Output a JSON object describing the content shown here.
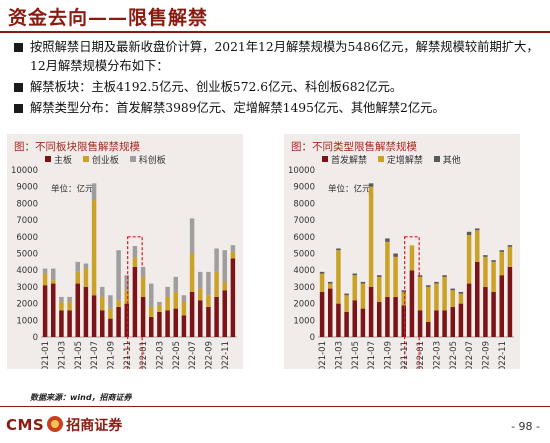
{
  "slide": {
    "title": "资金去向——限售解禁",
    "bullets": [
      "按照解禁日期及最新收盘价计算，2021年12月解禁规模为5486亿元，解禁规模较前期扩大，12月解禁规模分布如下：",
      "解禁板块：主板4192.5亿元、创业板572.6亿元、科创板682亿元。",
      "解禁类型分布：首发解禁3989亿元、定增解禁1495亿元、其他解禁2亿元。"
    ],
    "source_note": "数据来源：wind，招商证券",
    "logo_cms": "CMS",
    "logo_cn": "招商证券",
    "page_number": "- 98 -"
  },
  "chart_data": [
    {
      "type": "bar",
      "stacked": true,
      "title": "图：不同板块限售解禁规模",
      "unit_label": "单位：亿元",
      "ylim": [
        0,
        10000
      ],
      "yticks": [
        0,
        1000,
        2000,
        3000,
        4000,
        5000,
        6000,
        7000,
        8000,
        9000,
        10000
      ],
      "x_tick_labels": [
        "2021-01",
        "2021-03",
        "2021-05",
        "2021-07",
        "2021-09",
        "2021-11",
        "2022-01",
        "2022-03",
        "2022-05",
        "2022-07",
        "2022-09",
        "2022-11"
      ],
      "categories": [
        "2021-01",
        "2021-02",
        "2021-03",
        "2021-04",
        "2021-05",
        "2021-06",
        "2021-07",
        "2021-08",
        "2021-09",
        "2021-10",
        "2021-11",
        "2021-12",
        "2022-01",
        "2022-02",
        "2022-03",
        "2022-04",
        "2022-05",
        "2022-06",
        "2022-07",
        "2022-08",
        "2022-09",
        "2022-10",
        "2022-11",
        "2022-12"
      ],
      "highlight": "2021-12",
      "series": [
        {
          "name": "主板",
          "color": "#7b1416",
          "values": [
            3100,
            3200,
            1600,
            1600,
            3200,
            3000,
            2500,
            1600,
            1100,
            1800,
            2000,
            4200,
            2400,
            1200,
            1500,
            1600,
            1700,
            1300,
            2700,
            2200,
            1800,
            2400,
            2800,
            4700
          ]
        },
        {
          "name": "创业板",
          "color": "#c9a227",
          "values": [
            700,
            200,
            500,
            500,
            700,
            1100,
            5700,
            800,
            600,
            400,
            800,
            570,
            1200,
            600,
            400,
            800,
            1000,
            800,
            2300,
            700,
            700,
            1500,
            500,
            400
          ]
        },
        {
          "name": "科创板",
          "color": "#9e9e9e",
          "values": [
            300,
            700,
            300,
            300,
            600,
            300,
            1000,
            600,
            800,
            3000,
            900,
            680,
            600,
            1400,
            200,
            600,
            900,
            400,
            2100,
            1000,
            1400,
            1400,
            1900,
            400
          ]
        }
      ]
    },
    {
      "type": "bar",
      "stacked": true,
      "title": "图：不同类型限售解禁规模",
      "unit_label": "单位：亿元",
      "ylim": [
        0,
        10000
      ],
      "yticks": [
        0,
        1000,
        2000,
        3000,
        4000,
        5000,
        6000,
        7000,
        8000,
        9000,
        10000
      ],
      "x_tick_labels": [
        "2021-01",
        "2021-03",
        "2021-05",
        "2021-07",
        "2021-09",
        "2021-11",
        "2022-01",
        "2022-03",
        "2022-05",
        "2022-07",
        "2022-09",
        "2022-11"
      ],
      "categories": [
        "2021-01",
        "2021-02",
        "2021-03",
        "2021-04",
        "2021-05",
        "2021-06",
        "2021-07",
        "2021-08",
        "2021-09",
        "2021-10",
        "2021-11",
        "2021-12",
        "2022-01",
        "2022-02",
        "2022-03",
        "2022-04",
        "2022-05",
        "2022-06",
        "2022-07",
        "2022-08",
        "2022-09",
        "2022-10",
        "2022-11",
        "2022-12"
      ],
      "highlight": "2021-12",
      "series": [
        {
          "name": "首发解禁",
          "color": "#7b1416",
          "values": [
            2700,
            2900,
            2000,
            1500,
            2200,
            1700,
            3000,
            2100,
            2400,
            2400,
            1900,
            3989,
            1600,
            900,
            1600,
            1600,
            1800,
            2000,
            3200,
            4500,
            3000,
            2700,
            3700,
            4200
          ]
        },
        {
          "name": "定增解禁",
          "color": "#c9a227",
          "values": [
            1100,
            300,
            3200,
            1000,
            1500,
            1500,
            6000,
            1500,
            3300,
            2400,
            800,
            1495,
            2000,
            2100,
            1600,
            2000,
            1000,
            600,
            2900,
            1900,
            1800,
            1800,
            1400,
            1200
          ]
        },
        {
          "name": "其他",
          "color": "#5a5a5a",
          "values": [
            100,
            100,
            100,
            100,
            100,
            100,
            200,
            100,
            200,
            200,
            100,
            2,
            100,
            100,
            100,
            100,
            100,
            100,
            200,
            100,
            100,
            100,
            100,
            100
          ]
        }
      ]
    }
  ]
}
